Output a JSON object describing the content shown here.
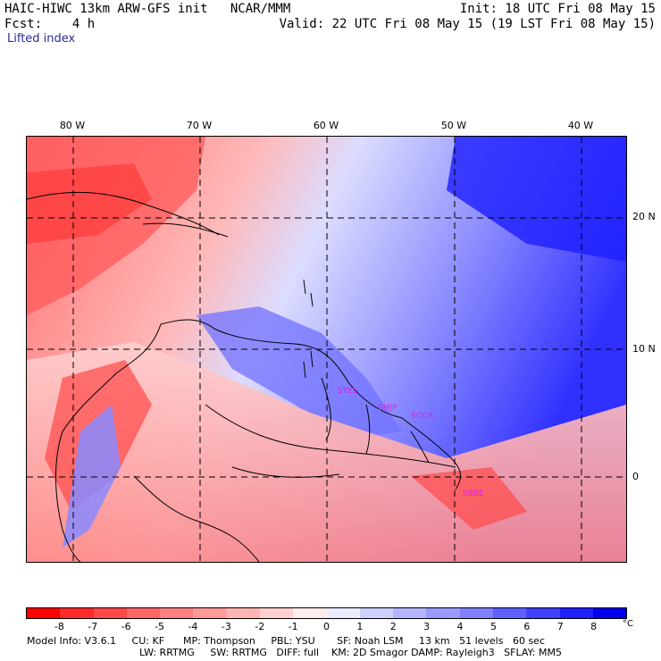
{
  "header": {
    "line1_left": "HAIC-HIWC 13km ARW-GFS init   NCAR/MMM",
    "line1_right": "Init: 18 UTC Fri 08 May 15",
    "line2_left": "Fcst:    4 h",
    "line2_right": "Valid: 22 UTC Fri 08 May 15 (19 LST Fri 08 May 15)",
    "field_name": "Lifted index"
  },
  "map": {
    "lon_labels": [
      "80 W",
      "70 W",
      "60 W",
      "50 W",
      "40 W"
    ],
    "lat_labels": [
      "20 N",
      "10 N",
      "0"
    ],
    "station_labels": [
      "SYEL",
      "SMJP",
      "SOCA",
      "SBBE"
    ]
  },
  "colorbar": {
    "tick_labels": [
      "-8",
      "-7",
      "-6",
      "-5",
      "-4",
      "-3",
      "-2",
      "-1",
      "0",
      "1",
      "2",
      "3",
      "4",
      "5",
      "6",
      "7",
      "8"
    ],
    "unit": "°C",
    "colors": [
      "#ff0000",
      "#ff2a2a",
      "#ff4a4a",
      "#ff6666",
      "#ff8080",
      "#ff9a9a",
      "#ffb4b4",
      "#ffd0d0",
      "#ffecec",
      "#ececff",
      "#d0d0ff",
      "#b4b4ff",
      "#9a9aff",
      "#8080ff",
      "#6060ff",
      "#4040ff",
      "#2020ff",
      "#0000ee"
    ]
  },
  "footer": {
    "line1": "Model Info: V3.6.1     CU: KF      MP: Thompson     PBL: YSU       SF: Noah LSM     13 km   51 levels   60 sec",
    "line2": "LW: RRTMG     SW: RRTMG   DIFF: full    KM: 2D Smagor DAMP: Rayleigh3   SFLAY: MM5"
  }
}
